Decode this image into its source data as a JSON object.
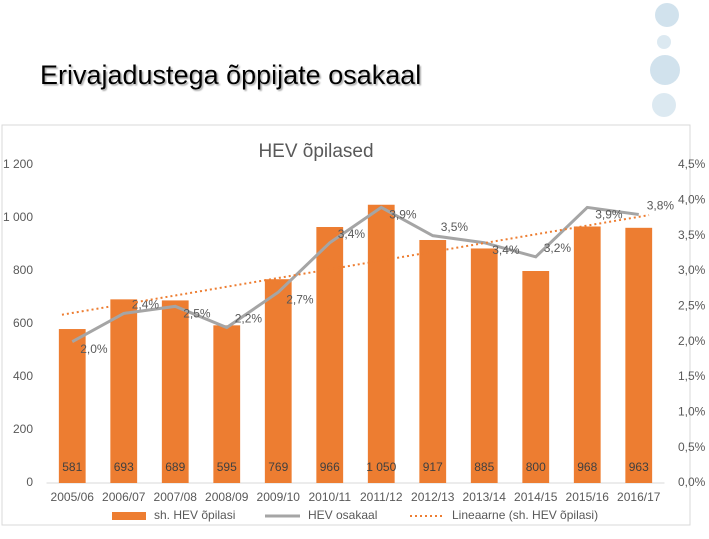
{
  "slide_title": "Erivajadustega õppijate osakaal",
  "chart_data": {
    "type": "bar",
    "title": "HEV õpilased",
    "categories": [
      "2005/06",
      "2006/07",
      "2007/08",
      "2008/09",
      "2009/10",
      "2010/11",
      "2011/12",
      "2012/13",
      "2013/14",
      "2014/15",
      "2015/16",
      "2016/17"
    ],
    "series": [
      {
        "name": "sh. HEV õpilasi",
        "type": "bar",
        "color": "#ed7d31",
        "values": [
          581,
          693,
          689,
          595,
          769,
          966,
          1050,
          917,
          885,
          800,
          968,
          963
        ],
        "value_labels": [
          "581",
          "693",
          "689",
          "595",
          "769",
          "966",
          "1 050",
          "917",
          "885",
          "800",
          "968",
          "963"
        ]
      },
      {
        "name": "HEV osakaal",
        "type": "line",
        "axis": "y2",
        "color": "#a5a5a5",
        "values": [
          2.0,
          2.4,
          2.5,
          2.2,
          2.7,
          3.4,
          3.9,
          3.5,
          3.4,
          3.2,
          3.9,
          3.8
        ],
        "value_labels": [
          "2,0%",
          "2,4%",
          "2,5%",
          "2,2%",
          "2,7%",
          "3,4%",
          "3,9%",
          "3,5%",
          "3,4%",
          "3,2%",
          "3,9%",
          "3,8%"
        ]
      }
    ],
    "trendline": {
      "name": "Lineaarne (sh. HEV õpilasi)",
      "color": "#ed7d31"
    },
    "ylim": [
      0,
      1200
    ],
    "yticks": [
      0,
      200,
      400,
      600,
      800,
      {
        "value": 1000,
        "label": "1 000"
      },
      {
        "value": 1200,
        "label": "1 200"
      }
    ],
    "y2lim": [
      0,
      4.5
    ],
    "y2ticks": [
      {
        "value": 0,
        "label": "0,0%"
      },
      {
        "value": 0.5,
        "label": "0,5%"
      },
      {
        "value": 1,
        "label": "1,0%"
      },
      {
        "value": 1.5,
        "label": "1,5%"
      },
      {
        "value": 2,
        "label": "2,0%"
      },
      {
        "value": 2.5,
        "label": "2,5%"
      },
      {
        "value": 3,
        "label": "3,0%"
      },
      {
        "value": 3.5,
        "label": "3,5%"
      },
      {
        "value": 4,
        "label": "4,0%"
      },
      {
        "value": 4.5,
        "label": "4,5%"
      }
    ],
    "grid": false
  }
}
